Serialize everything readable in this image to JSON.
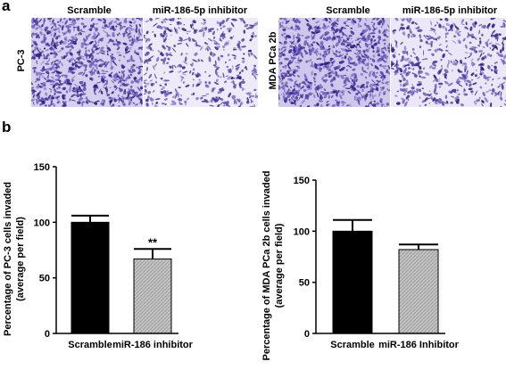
{
  "panel_a": {
    "letter": "a",
    "left": {
      "row_label": "PC-3",
      "col_labels": [
        "Scramble",
        "miR-186-5p inhibitor"
      ]
    },
    "right": {
      "row_label": "MDA PCa 2b",
      "col_labels": [
        "Scramble",
        "miR-186-5p inhibitor"
      ]
    },
    "stain_colors": [
      "#3b2a9a",
      "#5a47b5",
      "#7a68c8",
      "#2a1d7a"
    ]
  },
  "panel_b": {
    "letter": "b"
  },
  "chart_data": [
    {
      "type": "bar",
      "categories": [
        "Scramble",
        "miR-186 inhibitor"
      ],
      "values": [
        100,
        67
      ],
      "errors": [
        6,
        9
      ],
      "significance": [
        "",
        "**"
      ],
      "ylabel": "Percentage of PC-3 cells invaded\n(average per field)",
      "ylabel_lines": [
        "Percentage of PC-3 cells invaded",
        "(average per field)"
      ],
      "ylim": [
        0,
        150
      ],
      "yticks": [
        0,
        50,
        100,
        150
      ],
      "colors": [
        "#000000",
        "#b8b8b8"
      ]
    },
    {
      "type": "bar",
      "categories": [
        "Scramble",
        "miR-186 Inhibitor"
      ],
      "values": [
        100,
        82
      ],
      "errors": [
        11,
        5
      ],
      "significance": [
        "",
        ""
      ],
      "ylabel": "Percentage of MDA PCa 2b cells invaded\n(average per field)",
      "ylabel_lines": [
        "Percentage of MDA PCa 2b cells invaded",
        "(average per field)"
      ],
      "ylim": [
        0,
        150
      ],
      "yticks": [
        0,
        50,
        100,
        150
      ],
      "colors": [
        "#000000",
        "#b8b8b8"
      ]
    }
  ]
}
